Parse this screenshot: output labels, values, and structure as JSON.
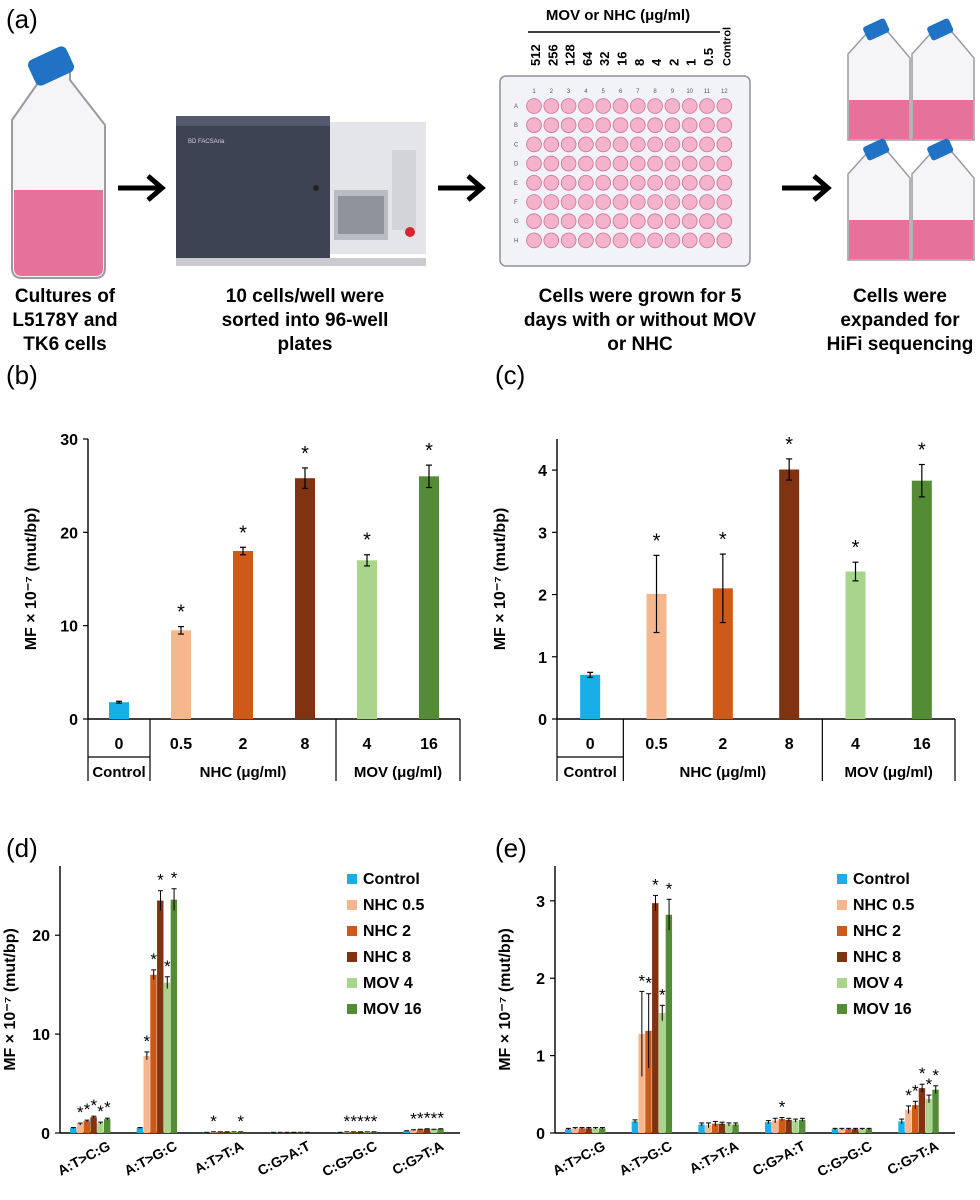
{
  "colors": {
    "control": "#18aee8",
    "nhc05": "#f6b78f",
    "nhc2": "#cd5a19",
    "nhc8": "#7f3310",
    "mov4": "#a8d58b",
    "mov16": "#548c36",
    "medium": "#e35b8c",
    "cap": "#1f72c4"
  },
  "workflow": {
    "panel_label": "(a)",
    "steps": [
      {
        "caption": [
          "Cultures of",
          "L5178Y and",
          "TK6 cells"
        ]
      },
      {
        "caption": [
          "10 cells/well were",
          "sorted into 96-well",
          "plates"
        ],
        "instrument_text": "BD FACSAria"
      },
      {
        "caption": [
          "Cells were grown for 5",
          "days with or without MOV",
          "or NHC"
        ]
      },
      {
        "caption": [
          "Cells were",
          "expanded for",
          "HiFi sequencing"
        ]
      }
    ],
    "plate": {
      "header": "MOV or NHC (μg/ml)",
      "concentrations": [
        "512",
        "256",
        "128",
        "64",
        "32",
        "16",
        "8",
        "4",
        "2",
        "1",
        "0.5",
        "Control"
      ],
      "col_numbers": [
        "1",
        "2",
        "3",
        "4",
        "5",
        "6",
        "7",
        "8",
        "9",
        "10",
        "11",
        "12"
      ],
      "row_letters": [
        "A",
        "B",
        "C",
        "D",
        "E",
        "F",
        "G",
        "H"
      ]
    }
  },
  "chart_data": [
    {
      "panel_label": "(b)",
      "type": "bar",
      "ylabel": "MF × 10⁻⁷ (mut/bp)",
      "ylim": [
        0,
        30
      ],
      "yticks": [
        0,
        10,
        20,
        30
      ],
      "categories": [
        "0",
        "0.5",
        "2",
        "8",
        "4",
        "16"
      ],
      "groups": [
        {
          "label": "Control",
          "span": [
            0,
            0
          ]
        },
        {
          "label": "NHC (μg/ml)",
          "span": [
            1,
            3
          ]
        },
        {
          "label": "MOV (μg/ml)",
          "span": [
            4,
            5
          ]
        }
      ],
      "values": [
        1.8,
        9.5,
        18.0,
        25.8,
        17.0,
        26.0
      ],
      "errors": [
        0.1,
        0.4,
        0.4,
        1.1,
        0.6,
        1.2
      ],
      "significance": [
        "",
        "*",
        "*",
        "*",
        "*",
        "*"
      ],
      "series_colors": [
        "control",
        "nhc05",
        "nhc2",
        "nhc8",
        "mov4",
        "mov16"
      ]
    },
    {
      "panel_label": "(c)",
      "type": "bar",
      "ylabel": "MF × 10⁻⁷ (mut/bp)",
      "ylim": [
        0,
        4.5
      ],
      "yticks": [
        0,
        1,
        2,
        3,
        4
      ],
      "categories": [
        "0",
        "0.5",
        "2",
        "8",
        "4",
        "16"
      ],
      "groups": [
        {
          "label": "Control",
          "span": [
            0,
            0
          ]
        },
        {
          "label": "NHC (μg/ml)",
          "span": [
            1,
            3
          ]
        },
        {
          "label": "MOV (μg/ml)",
          "span": [
            4,
            5
          ]
        }
      ],
      "values": [
        0.71,
        2.01,
        2.1,
        4.01,
        2.37,
        3.83
      ],
      "errors": [
        0.04,
        0.62,
        0.55,
        0.17,
        0.15,
        0.26
      ],
      "significance": [
        "",
        "*",
        "*",
        "*",
        "*",
        "*"
      ],
      "series_colors": [
        "control",
        "nhc05",
        "nhc2",
        "nhc8",
        "mov4",
        "mov16"
      ]
    },
    {
      "panel_label": "(d)",
      "type": "grouped-bar",
      "ylabel": "MF × 10⁻⁷ (mut/bp)",
      "ylim": [
        0,
        27
      ],
      "yticks": [
        0,
        10,
        20
      ],
      "categories": [
        "A:T>C:G",
        "A:T>G:C",
        "A:T>T:A",
        "C:G>A:T",
        "C:G>G:C",
        "C:G>T:A"
      ],
      "series": [
        {
          "name": "Control",
          "color": "control",
          "values": [
            0.5,
            0.5,
            0.05,
            0.05,
            0.05,
            0.2
          ],
          "errors": [
            0.05,
            0.05,
            0.02,
            0.02,
            0.02,
            0.03
          ],
          "sig": [
            "",
            "",
            "",
            "",
            "",
            ""
          ]
        },
        {
          "name": "NHC 0.5",
          "color": "nhc05",
          "values": [
            0.9,
            7.8,
            0.1,
            0.05,
            0.1,
            0.3
          ],
          "errors": [
            0.1,
            0.4,
            0.02,
            0.02,
            0.02,
            0.03
          ],
          "sig": [
            "*",
            "*",
            "*",
            "",
            "*",
            "*"
          ]
        },
        {
          "name": "NHC 2",
          "color": "nhc2",
          "values": [
            1.2,
            16.0,
            0.1,
            0.05,
            0.1,
            0.35
          ],
          "errors": [
            0.1,
            0.5,
            0.02,
            0.02,
            0.02,
            0.03
          ],
          "sig": [
            "*",
            "*",
            "",
            "",
            "*",
            "*"
          ]
        },
        {
          "name": "NHC 8",
          "color": "nhc8",
          "values": [
            1.6,
            23.5,
            0.1,
            0.05,
            0.1,
            0.4
          ],
          "errors": [
            0.1,
            1.0,
            0.02,
            0.02,
            0.02,
            0.03
          ],
          "sig": [
            "*",
            "*",
            "",
            "",
            "*",
            "*"
          ]
        },
        {
          "name": "MOV 4",
          "color": "mov4",
          "values": [
            1.0,
            15.2,
            0.1,
            0.05,
            0.1,
            0.35
          ],
          "errors": [
            0.1,
            0.6,
            0.02,
            0.02,
            0.02,
            0.03
          ],
          "sig": [
            "*",
            "*",
            "",
            "",
            "*",
            "*"
          ]
        },
        {
          "name": "MOV 16",
          "color": "mov16",
          "values": [
            1.4,
            23.6,
            0.1,
            0.05,
            0.1,
            0.4
          ],
          "errors": [
            0.1,
            1.1,
            0.02,
            0.02,
            0.02,
            0.03
          ],
          "sig": [
            "*",
            "*",
            "*",
            "",
            "*",
            "*"
          ]
        }
      ]
    },
    {
      "panel_label": "(e)",
      "type": "grouped-bar",
      "ylabel": "MF × 10⁻⁷ (mut/bp)",
      "ylim": [
        0,
        3.45
      ],
      "yticks": [
        0,
        1,
        2,
        3
      ],
      "categories": [
        "A:T>C:G",
        "A:T>G:C",
        "A:T>T:A",
        "C:G>A:T",
        "C:G>G:C",
        "C:G>T:A"
      ],
      "series": [
        {
          "name": "Control",
          "color": "control",
          "values": [
            0.05,
            0.15,
            0.11,
            0.14,
            0.05,
            0.15
          ],
          "errors": [
            0.01,
            0.02,
            0.02,
            0.02,
            0.01,
            0.03
          ],
          "sig": [
            "",
            "",
            "",
            "",
            "",
            ""
          ]
        },
        {
          "name": "NHC 0.5",
          "color": "nhc05",
          "values": [
            0.06,
            1.28,
            0.1,
            0.16,
            0.05,
            0.3
          ],
          "errors": [
            0.01,
            0.55,
            0.03,
            0.03,
            0.01,
            0.05
          ],
          "sig": [
            "",
            "*",
            "",
            "",
            "",
            "*"
          ]
        },
        {
          "name": "NHC 2",
          "color": "nhc2",
          "values": [
            0.06,
            1.32,
            0.12,
            0.18,
            0.05,
            0.36
          ],
          "errors": [
            0.01,
            0.48,
            0.03,
            0.02,
            0.01,
            0.05
          ],
          "sig": [
            "",
            "*",
            "",
            "*",
            "",
            "*"
          ]
        },
        {
          "name": "NHC 8",
          "color": "nhc8",
          "values": [
            0.06,
            2.97,
            0.12,
            0.17,
            0.05,
            0.58
          ],
          "errors": [
            0.01,
            0.1,
            0.02,
            0.02,
            0.01,
            0.05
          ],
          "sig": [
            "",
            "*",
            "",
            "",
            "",
            "*"
          ]
        },
        {
          "name": "MOV 4",
          "color": "mov4",
          "values": [
            0.06,
            1.55,
            0.11,
            0.16,
            0.05,
            0.44
          ],
          "errors": [
            0.01,
            0.1,
            0.02,
            0.02,
            0.01,
            0.05
          ],
          "sig": [
            "",
            "*",
            "",
            "",
            "",
            "*"
          ]
        },
        {
          "name": "MOV 16",
          "color": "mov16",
          "values": [
            0.06,
            2.82,
            0.11,
            0.17,
            0.05,
            0.56
          ],
          "errors": [
            0.01,
            0.2,
            0.02,
            0.02,
            0.01,
            0.05
          ],
          "sig": [
            "",
            "*",
            "",
            "",
            "",
            "*"
          ]
        }
      ]
    }
  ]
}
